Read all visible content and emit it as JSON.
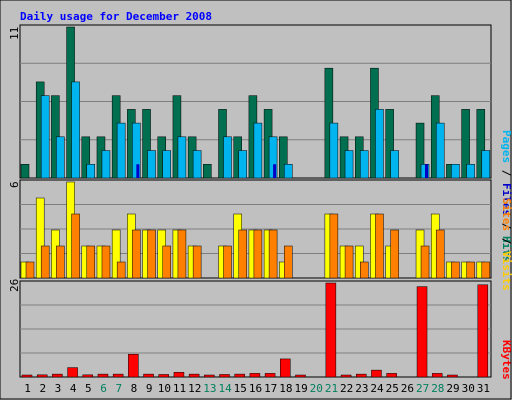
{
  "chart_data": {
    "type": "bar",
    "title": "Daily usage for December 2008",
    "categories": [
      "1",
      "2",
      "3",
      "4",
      "5",
      "6",
      "7",
      "8",
      "9",
      "10",
      "11",
      "12",
      "13",
      "14",
      "15",
      "16",
      "17",
      "18",
      "19",
      "20",
      "21",
      "22",
      "23",
      "24",
      "25",
      "26",
      "27",
      "28",
      "29",
      "30",
      "31"
    ],
    "weekend_days": [
      "6",
      "7",
      "13",
      "14",
      "20",
      "21",
      "27",
      "28"
    ],
    "panels": [
      {
        "name": "hits-files-pages",
        "axis_max_label": "11",
        "ylim": [
          0,
          11
        ],
        "legend": [
          "Pages",
          "Files",
          "Hits"
        ],
        "series": [
          {
            "name": "Hits",
            "color": "#006f4f",
            "values": [
              1,
              7,
              6,
              11,
              3,
              3,
              6,
              5,
              5,
              3,
              6,
              3,
              1,
              5,
              3,
              6,
              5,
              3,
              0,
              0,
              8,
              3,
              3,
              8,
              5,
              0,
              4,
              6,
              1,
              5,
              5
            ]
          },
          {
            "name": "Files",
            "color": "#00b4f0",
            "values": [
              0,
              6,
              3,
              7,
              1,
              2,
              4,
              4,
              2,
              2,
              3,
              2,
              0,
              3,
              2,
              4,
              3,
              1,
              0,
              0,
              4,
              2,
              2,
              5,
              2,
              0,
              1,
              4,
              1,
              1,
              2
            ]
          },
          {
            "name": "Pages",
            "color": "#0000c8",
            "values": [
              0,
              0,
              0,
              0,
              0,
              0,
              0,
              1,
              0,
              0,
              0,
              0,
              0,
              0,
              0,
              0,
              1,
              0,
              0,
              0,
              0,
              0,
              0,
              0,
              0,
              0,
              1,
              0,
              0,
              0,
              0
            ]
          }
        ]
      },
      {
        "name": "sites-visits",
        "axis_max_label": "6",
        "ylim": [
          0,
          6
        ],
        "legend": [
          "Sites",
          "Visits"
        ],
        "series": [
          {
            "name": "Visits",
            "color": "#ffff00",
            "values": [
              1,
              5,
              3,
              6,
              2,
              2,
              3,
              4,
              3,
              3,
              3,
              2,
              0,
              2,
              4,
              3,
              3,
              1,
              0,
              0,
              4,
              2,
              2,
              4,
              2,
              0,
              3,
              4,
              1,
              1,
              1
            ]
          },
          {
            "name": "Sites",
            "color": "#ff8000",
            "values": [
              1,
              2,
              2,
              4,
              2,
              2,
              1,
              3,
              3,
              2,
              3,
              2,
              0,
              2,
              3,
              3,
              3,
              2,
              0,
              0,
              4,
              2,
              1,
              4,
              3,
              0,
              2,
              3,
              1,
              1,
              1
            ]
          }
        ]
      },
      {
        "name": "kbytes",
        "axis_max_label": "26",
        "ylim": [
          0,
          26
        ],
        "legend": [
          "KBytes"
        ],
        "series": [
          {
            "name": "KBytes",
            "color": "#ff0000",
            "values": [
              0.3,
              0.6,
              0.8,
              2.6,
              0.6,
              0.8,
              0.8,
              6.3,
              0.8,
              0.7,
              1.3,
              0.8,
              0.4,
              0.7,
              0.8,
              1.0,
              1.0,
              5.0,
              0.5,
              0,
              26,
              0.5,
              0.8,
              1.9,
              1.0,
              0,
              25,
              1.0,
              0.4,
              0,
              25.5
            ]
          }
        ]
      }
    ]
  },
  "colors": {
    "title": "#0000ff",
    "weekend_label": "#00805c",
    "weekday_label": "#000000",
    "pages": "#0000c8",
    "files": "#00b4f0",
    "hits": "#008060",
    "sites": "#ff8000",
    "visits": "#ffcc00",
    "kbytes": "#ff0000"
  }
}
